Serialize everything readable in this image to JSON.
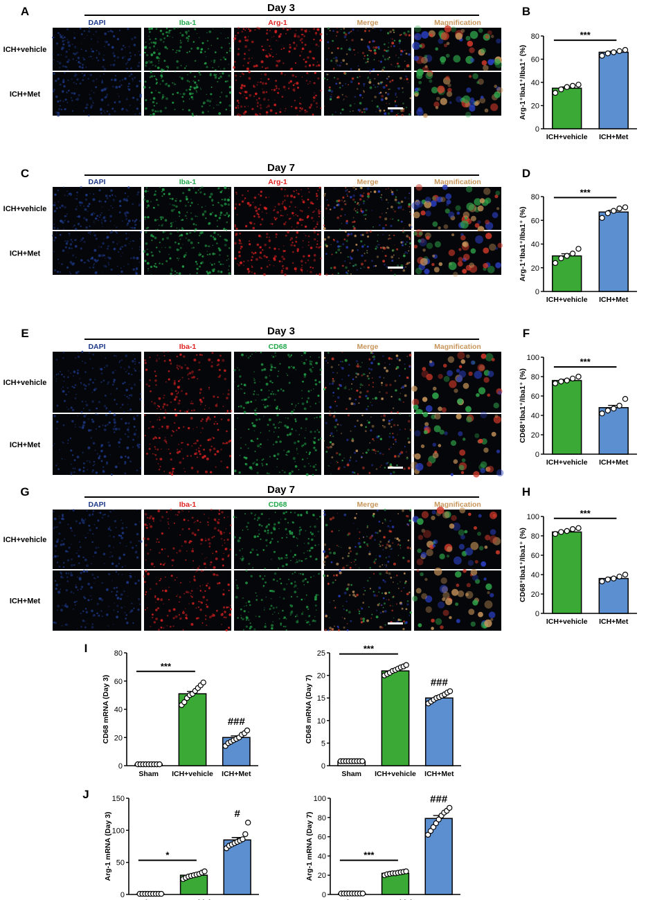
{
  "channel_colors": {
    "DAPI": "#1e3a8a",
    "Iba-1-green": "#22a84a",
    "Arg-1": "#e02222",
    "Iba-1-red": "#e02222",
    "CD68": "#22a84a",
    "Merge": "#c8955a",
    "Magnification": "#c8955a"
  },
  "bar_colors": {
    "vehicle": "#3aa935",
    "met": "#5b8fd0",
    "sham": "#ffffff"
  },
  "sections": [
    {
      "panel_letter": "A",
      "title": "Day 3",
      "channels": [
        {
          "label": "DAPI",
          "color": "#1e3a8a"
        },
        {
          "label": "Iba-1",
          "color": "#22a84a"
        },
        {
          "label": "Arg-1",
          "color": "#e02222"
        },
        {
          "label": "Merge",
          "color": "#c8955a"
        },
        {
          "label": "Magnification",
          "color": "#c8955a"
        }
      ],
      "rows": [
        "ICH+vehicle",
        "ICH+Met"
      ]
    },
    {
      "panel_letter": "C",
      "title": "Day 7",
      "channels": [
        {
          "label": "DAPI",
          "color": "#1e3a8a"
        },
        {
          "label": "Iba-1",
          "color": "#22a84a"
        },
        {
          "label": "Arg-1",
          "color": "#e02222"
        },
        {
          "label": "Merge",
          "color": "#c8955a"
        },
        {
          "label": "Magnification",
          "color": "#c8955a"
        }
      ],
      "rows": [
        "ICH+vehicle",
        "ICH+Met"
      ]
    },
    {
      "panel_letter": "E",
      "title": "Day 3",
      "channels": [
        {
          "label": "DAPI",
          "color": "#1e3a8a"
        },
        {
          "label": "Iba-1",
          "color": "#e02222"
        },
        {
          "label": "CD68",
          "color": "#22a84a"
        },
        {
          "label": "Merge",
          "color": "#c8955a"
        },
        {
          "label": "Magnification",
          "color": "#c8955a"
        }
      ],
      "rows": [
        "ICH+vehicle",
        "ICH+Met"
      ]
    },
    {
      "panel_letter": "G",
      "title": "Day 7",
      "channels": [
        {
          "label": "DAPI",
          "color": "#1e3a8a"
        },
        {
          "label": "Iba-1",
          "color": "#e02222"
        },
        {
          "label": "CD68",
          "color": "#22a84a"
        },
        {
          "label": "Merge",
          "color": "#c8955a"
        },
        {
          "label": "Magnification",
          "color": "#c8955a"
        }
      ],
      "rows": [
        "ICH+vehicle",
        "ICH+Met"
      ]
    }
  ],
  "chart_data": [
    {
      "panel": "B",
      "type": "bar",
      "categories": [
        "ICH+vehicle",
        "ICH+Met"
      ],
      "values": [
        35,
        66
      ],
      "points": [
        [
          31,
          34,
          36,
          37,
          38
        ],
        [
          63,
          65,
          66,
          67,
          68
        ]
      ],
      "ylabel": "Arg-1⁺Iba1⁺/Iba1⁺ (%)",
      "ylim": [
        0,
        80
      ],
      "yticks": [
        0,
        20,
        40,
        60,
        80
      ],
      "annotations": [
        {
          "text": "***",
          "from": 0,
          "to": 1
        }
      ],
      "above": [
        "",
        ""
      ]
    },
    {
      "panel": "D",
      "type": "bar",
      "categories": [
        "ICH+vehicle",
        "ICH+Met"
      ],
      "values": [
        30,
        67
      ],
      "points": [
        [
          24,
          28,
          30,
          32,
          36
        ],
        [
          62,
          66,
          68,
          70,
          71
        ]
      ],
      "ylabel": "Arg-1⁺Iba1⁺/Iba1⁺ (%)",
      "ylim": [
        0,
        80
      ],
      "yticks": [
        0,
        20,
        40,
        60,
        80
      ],
      "annotations": [
        {
          "text": "***",
          "from": 0,
          "to": 1
        }
      ],
      "above": [
        "",
        ""
      ]
    },
    {
      "panel": "F",
      "type": "bar",
      "categories": [
        "ICH+vehicle",
        "ICH+Met"
      ],
      "values": [
        76,
        48
      ],
      "points": [
        [
          73,
          75,
          76,
          78,
          80
        ],
        [
          42,
          45,
          47,
          50,
          57
        ]
      ],
      "ylabel": "CD68⁺Iba1⁺/Iba1⁺ (%)",
      "ylim": [
        0,
        100
      ],
      "yticks": [
        0,
        20,
        40,
        60,
        80,
        100
      ],
      "annotations": [
        {
          "text": "***",
          "from": 0,
          "to": 1
        }
      ],
      "above": [
        "",
        ""
      ]
    },
    {
      "panel": "H",
      "type": "bar",
      "categories": [
        "ICH+vehicle",
        "ICH+Met"
      ],
      "values": [
        84,
        36
      ],
      "points": [
        [
          82,
          84,
          85,
          87,
          88
        ],
        [
          33,
          35,
          36,
          38,
          40
        ]
      ],
      "ylabel": "CD68⁺Iba1⁺/Iba1⁺ (%)",
      "ylim": [
        0,
        100
      ],
      "yticks": [
        0,
        20,
        40,
        60,
        80,
        100
      ],
      "annotations": [
        {
          "text": "***",
          "from": 0,
          "to": 1
        }
      ],
      "above": [
        "",
        ""
      ]
    },
    {
      "panel": "I",
      "type": "bar",
      "categories": [
        "Sham",
        "ICH+vehicle",
        "ICH+Met"
      ],
      "values": [
        1,
        51,
        20
      ],
      "points": [
        [
          1,
          1,
          1,
          1,
          1,
          1,
          1,
          1,
          1
        ],
        [
          43,
          45,
          48,
          50,
          51,
          53,
          55,
          57,
          59
        ],
        [
          14,
          16,
          17,
          18,
          19,
          20,
          22,
          23,
          25
        ]
      ],
      "ylabel": "CD68 mRNA (Day 3)",
      "ylim": [
        0,
        80
      ],
      "yticks": [
        0,
        20,
        40,
        60,
        80
      ],
      "annotations": [
        {
          "text": "***",
          "from": 0,
          "to": 1
        }
      ],
      "above": [
        "",
        "",
        "###"
      ]
    },
    {
      "panel": "I",
      "type": "bar",
      "categories": [
        "Sham",
        "ICH+vehicle",
        "ICH+Met"
      ],
      "values": [
        1,
        21,
        15
      ],
      "points": [
        [
          1,
          1,
          1,
          1,
          1,
          1,
          1,
          1,
          1
        ],
        [
          20,
          20.3,
          20.6,
          21,
          21.2,
          21.5,
          21.8,
          22,
          22.3
        ],
        [
          13.8,
          14.2,
          14.6,
          15,
          15.2,
          15.5,
          15.8,
          16.2,
          16.5
        ]
      ],
      "ylabel": "CD68 mRNA (Day 7)",
      "ylim": [
        0,
        25
      ],
      "yticks": [
        0,
        5,
        10,
        15,
        20,
        25
      ],
      "annotations": [
        {
          "text": "***",
          "from": 0,
          "to": 1
        }
      ],
      "above": [
        "",
        "",
        "###"
      ]
    },
    {
      "panel": "J",
      "type": "bar",
      "categories": [
        "Sham",
        "ICH+vehicle",
        "ICH+Met"
      ],
      "values": [
        1,
        30,
        85
      ],
      "points": [
        [
          1,
          1,
          1,
          1,
          1,
          1,
          1,
          1,
          1
        ],
        [
          24,
          26,
          28,
          29,
          30,
          31,
          32,
          34,
          36
        ],
        [
          72,
          76,
          78,
          80,
          82,
          84,
          86,
          94,
          112
        ]
      ],
      "ylabel": "Arg-1 mRNA (Day 3)",
      "ylim": [
        0,
        150
      ],
      "yticks": [
        0,
        50,
        100,
        150
      ],
      "annotations": [
        {
          "text": "*",
          "from": 0,
          "to": 1
        }
      ],
      "above": [
        "",
        "",
        "#"
      ]
    },
    {
      "panel": "J",
      "type": "bar",
      "categories": [
        "Sham",
        "ICH+vehicle",
        "ICH+Met"
      ],
      "values": [
        1,
        22,
        79
      ],
      "points": [
        [
          1,
          1,
          1,
          1,
          1,
          1,
          1,
          1,
          1
        ],
        [
          20,
          21,
          21.5,
          22,
          22,
          22.5,
          23,
          23.5,
          24
        ],
        [
          62,
          66,
          70,
          74,
          78,
          82,
          85,
          87,
          90
        ]
      ],
      "ylabel": "Arg-1 mRNA (Day 7)",
      "ylim": [
        0,
        100
      ],
      "yticks": [
        0,
        20,
        40,
        60,
        80,
        100
      ],
      "annotations": [
        {
          "text": "***",
          "from": 0,
          "to": 1
        }
      ],
      "above": [
        "",
        "",
        "###"
      ]
    }
  ]
}
